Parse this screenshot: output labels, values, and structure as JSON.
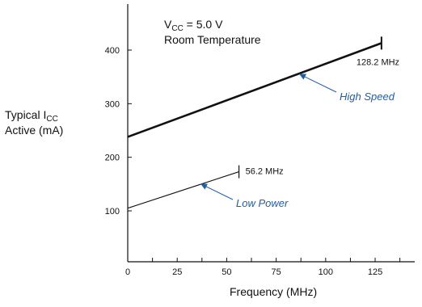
{
  "chart_data": {
    "type": "line",
    "title": "",
    "ylabel": {
      "main": "Typical I",
      "sub": "CC",
      "line2": "Active (mA)"
    },
    "xlabel": "Frequency (MHz)",
    "conditions": {
      "vcc_main": "V",
      "vcc_sub": "CC",
      "vcc_rest": " = 5.0 V",
      "temperature": "Room Temperature"
    },
    "xlim": [
      0,
      145
    ],
    "ylim": [
      0,
      500
    ],
    "x_ticks": [
      0,
      25,
      50,
      75,
      100,
      125
    ],
    "x_tick_labels": [
      "0",
      "25",
      "50",
      "75",
      "100",
      "125"
    ],
    "x_minor_ticks": [
      12.5,
      37.5,
      62.5,
      87.5,
      112.5,
      137.5
    ],
    "y_ticks": [
      100,
      200,
      300,
      400
    ],
    "y_tick_labels": [
      "100",
      "200",
      "300",
      "400"
    ],
    "grid": false,
    "series": [
      {
        "name": "High Speed",
        "x": [
          0,
          128.2
        ],
        "y": [
          238,
          413
        ],
        "end_label": "128.2 MHz",
        "color": "#111111"
      },
      {
        "name": "Low Power",
        "x": [
          0,
          56.2
        ],
        "y": [
          105,
          173
        ],
        "end_label": "56.2 MHz",
        "color": "#111111"
      }
    ],
    "label_color": "#1f5fa8"
  }
}
